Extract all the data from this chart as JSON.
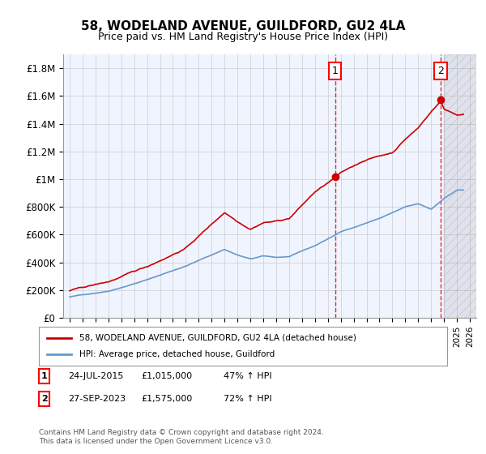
{
  "title": "58, WODELAND AVENUE, GUILDFORD, GU2 4LA",
  "subtitle": "Price paid vs. HM Land Registry's House Price Index (HPI)",
  "ylabel_ticks": [
    "£0",
    "£200K",
    "£400K",
    "£600K",
    "£800K",
    "£1M",
    "£1.2M",
    "£1.4M",
    "£1.6M",
    "£1.8M"
  ],
  "ytick_values": [
    0,
    200000,
    400000,
    600000,
    800000,
    1000000,
    1200000,
    1400000,
    1600000,
    1800000
  ],
  "ylim": [
    0,
    1900000
  ],
  "xlim_start": 1995,
  "xlim_end": 2026,
  "xtick_years": [
    1995,
    1996,
    1997,
    1998,
    1999,
    2000,
    2001,
    2002,
    2003,
    2004,
    2005,
    2006,
    2007,
    2008,
    2009,
    2010,
    2011,
    2012,
    2013,
    2014,
    2015,
    2016,
    2017,
    2018,
    2019,
    2020,
    2021,
    2022,
    2023,
    2024,
    2025,
    2026
  ],
  "hpi_color": "#6699cc",
  "price_color": "#cc0000",
  "marker1_x": 2015.56,
  "marker1_y": 1015000,
  "marker2_x": 2023.75,
  "marker2_y": 1575000,
  "marker1_label": "1",
  "marker2_label": "2",
  "legend_line1": "58, WODELAND AVENUE, GUILDFORD, GU2 4LA (detached house)",
  "legend_line2": "HPI: Average price, detached house, Guildford",
  "table_row1": [
    "1",
    "24-JUL-2015",
    "£1,015,000",
    "47% ↑ HPI"
  ],
  "table_row2": [
    "2",
    "27-SEP-2023",
    "£1,575,000",
    "72% ↑ HPI"
  ],
  "footnote": "Contains HM Land Registry data © Crown copyright and database right 2024.\nThis data is licensed under the Open Government Licence v3.0.",
  "bg_color": "#ffffff",
  "plot_bg_color": "#f0f4ff",
  "hatch_color": "#cccccc",
  "grid_color": "#cccccc"
}
